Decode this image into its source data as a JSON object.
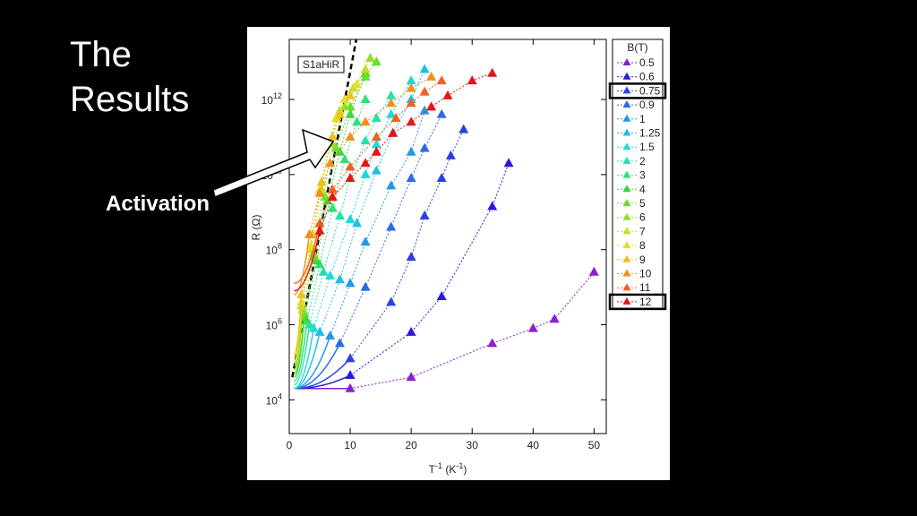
{
  "slide": {
    "title_line1": "The",
    "title_line2": "Results",
    "callout": "Activation"
  },
  "chart_data": {
    "type": "scatter",
    "annotation_box": "S1aHiR",
    "xlabel": "T",
    "xlabel_sup": "-1",
    "xlabel_units": " (K",
    "xlabel_units_sup": "-1",
    "xlabel_close": ")",
    "ylabel": "R (Ω)",
    "xlim": [
      0,
      52
    ],
    "ylim_log10": [
      3.1,
      13.6
    ],
    "y_scale": "log",
    "x_ticks": [
      "0",
      "10",
      "20",
      "30",
      "40",
      "50"
    ],
    "y_ticks": [
      {
        "base": "10",
        "exp": "4",
        "value": 4
      },
      {
        "base": "10",
        "exp": "6",
        "value": 6
      },
      {
        "base": "10",
        "exp": "8",
        "value": 8
      },
      {
        "base": "10",
        "exp": "10",
        "value": 10
      },
      {
        "base": "10",
        "exp": "12",
        "value": 12
      }
    ],
    "legend_title": "B(T)",
    "legend_placement": "right",
    "highlighted_series": [
      "0.75",
      "12"
    ],
    "activation_line": {
      "x": [
        0.5,
        11
      ],
      "log10R": [
        4.6,
        13.6
      ],
      "style": "dashed"
    },
    "series": [
      {
        "name": "0.5",
        "color": "#8a1fd6",
        "x": [
          10,
          20,
          33.3,
          40,
          43.5,
          50
        ],
        "log10R": [
          4.3,
          4.6,
          5.5,
          5.9,
          6.15,
          7.4
        ]
      },
      {
        "name": "0.6",
        "color": "#2a1ae0",
        "x": [
          10,
          20,
          25,
          33.3,
          36
        ],
        "log10R": [
          4.65,
          5.8,
          6.75,
          9.15,
          10.3
        ]
      },
      {
        "name": "0.75",
        "color": "#2b3fe6",
        "x": [
          10,
          16.7,
          20,
          22.2,
          25,
          26.5,
          28.6
        ],
        "log10R": [
          5.1,
          6.6,
          7.8,
          8.9,
          9.9,
          10.5,
          11.2
        ]
      },
      {
        "name": "0.9",
        "color": "#2a6ae8",
        "x": [
          8.3,
          12.5,
          16.7,
          20,
          22.2,
          25
        ],
        "log10R": [
          5.5,
          7.0,
          8.6,
          9.9,
          10.7,
          11.6
        ]
      },
      {
        "name": "1",
        "color": "#2597e8",
        "x": [
          6.7,
          10,
          12.5,
          16.7,
          20,
          22.2
        ],
        "log10R": [
          5.7,
          7.1,
          8.2,
          9.7,
          10.6,
          11.7
        ]
      },
      {
        "name": "1.25",
        "color": "#1fbfe6",
        "x": [
          5,
          8.3,
          11.1,
          14.3,
          17,
          20,
          22.2
        ],
        "log10R": [
          5.8,
          7.2,
          8.7,
          10.1,
          11.1,
          12.0,
          12.8
        ]
      },
      {
        "name": "1.5",
        "color": "#20d8d8",
        "x": [
          4,
          6.7,
          10,
          12.5,
          14.3,
          16.7,
          20
        ],
        "log10R": [
          5.9,
          7.3,
          8.8,
          10.0,
          10.8,
          11.6,
          12.5
        ]
      },
      {
        "name": "2",
        "color": "#24e0b0",
        "x": [
          3.3,
          5.6,
          8.3,
          10,
          12.5,
          14.3,
          16.7
        ],
        "log10R": [
          6.0,
          7.4,
          8.9,
          9.9,
          10.9,
          11.5,
          12.1
        ]
      },
      {
        "name": "3",
        "color": "#2ee07a",
        "x": [
          2.9,
          5,
          7.1,
          9.1,
          11.1,
          12.5
        ],
        "log10R": [
          6.1,
          7.6,
          9.1,
          10.4,
          11.4,
          12.0
        ]
      },
      {
        "name": "4",
        "color": "#3ed43e",
        "x": [
          2.5,
          4.5,
          6.3,
          8.3,
          10,
          12.5
        ],
        "log10R": [
          6.2,
          7.7,
          9.3,
          10.6,
          11.6,
          12.7
        ]
      },
      {
        "name": "5",
        "color": "#63e02a",
        "x": [
          2.5,
          4.2,
          5.9,
          7.7,
          10,
          12.5,
          14.3
        ],
        "log10R": [
          6.3,
          7.8,
          9.4,
          10.7,
          11.8,
          12.6,
          13.0
        ]
      },
      {
        "name": "6",
        "color": "#8ee02a",
        "x": [
          2.2,
          4,
          5.6,
          7.1,
          9.1,
          11.1,
          13.3
        ],
        "log10R": [
          6.4,
          7.9,
          9.5,
          10.8,
          11.8,
          12.4,
          13.1
        ]
      },
      {
        "name": "7",
        "color": "#bde02a",
        "x": [
          2,
          3.7,
          5.3,
          6.7,
          8.3,
          10.5,
          12.5
        ],
        "log10R": [
          6.5,
          8.0,
          9.6,
          10.9,
          11.7,
          12.3,
          12.8
        ]
      },
      {
        "name": "8",
        "color": "#e4e024",
        "x": [
          2,
          3.6,
          5,
          6.3,
          7.7,
          9.1,
          11.1
        ],
        "log10R": [
          6.6,
          8.1,
          9.6,
          10.8,
          11.5,
          12.0,
          12.4
        ]
      },
      {
        "name": "9",
        "color": "#f0c020",
        "x": [
          2,
          3.8,
          5.3,
          7.1,
          8.3,
          10
        ],
        "log10R": [
          6.8,
          8.4,
          9.8,
          11.0,
          11.6,
          12.1
        ]
      },
      {
        "name": "10",
        "color": "#f09020",
        "x": [
          3.3,
          5,
          6.7,
          10,
          12.5,
          16.7,
          20,
          23.3
        ],
        "log10R": [
          8.4,
          9.5,
          10.3,
          11.0,
          11.4,
          11.9,
          12.3,
          12.6
        ]
      },
      {
        "name": "11",
        "color": "#f06020",
        "x": [
          5,
          7.1,
          10,
          14.3,
          17.5,
          20,
          22.2,
          25
        ],
        "log10R": [
          8.7,
          9.6,
          10.2,
          11.0,
          11.5,
          11.9,
          12.2,
          12.5
        ]
      },
      {
        "name": "12",
        "color": "#e61515",
        "x": [
          5,
          7.1,
          10,
          12.5,
          14.3,
          17,
          20,
          23.3,
          26,
          30,
          33.3
        ],
        "log10R": [
          8.5,
          9.4,
          9.9,
          10.3,
          10.6,
          11.1,
          11.4,
          11.8,
          12.1,
          12.5,
          12.7
        ]
      }
    ]
  }
}
